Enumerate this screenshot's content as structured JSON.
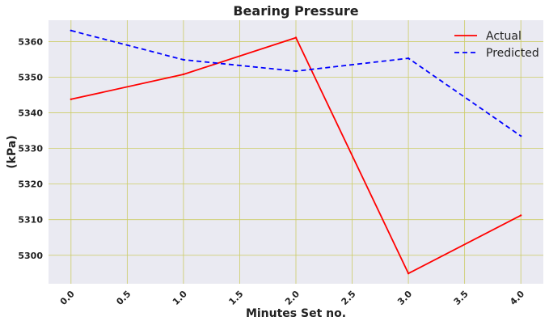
{
  "chart_data": {
    "type": "line",
    "title": "Bearing Pressure",
    "xlabel": "Minutes Set no.",
    "ylabel": "(kPa)",
    "x": [
      0,
      1,
      2,
      3,
      4
    ],
    "xlim": [
      -0.2,
      4.2
    ],
    "ylim": [
      5292,
      5366
    ],
    "xticks": [
      0.0,
      0.5,
      1.0,
      1.5,
      2.0,
      2.5,
      3.0,
      3.5,
      4.0
    ],
    "xtick_labels": [
      "0.0",
      "0.5",
      "1.0",
      "1.5",
      "2.0",
      "2.5",
      "3.0",
      "3.5",
      "4.0"
    ],
    "yticks": [
      5300,
      5310,
      5320,
      5330,
      5340,
      5350,
      5360
    ],
    "ytick_labels": [
      "5300",
      "5310",
      "5320",
      "5330",
      "5340",
      "5350",
      "5360"
    ],
    "grid": true,
    "legend_position": "top-right",
    "series": [
      {
        "name": "Actual",
        "values": [
          5343.8,
          5350.8,
          5361.1,
          5294.9,
          5311.2
        ],
        "color": "#ff0000",
        "style": "solid"
      },
      {
        "name": "Predicted",
        "values": [
          5363.1,
          5354.9,
          5351.7,
          5355.3,
          5333.5
        ],
        "color": "#0000ff",
        "style": "dashed"
      }
    ]
  },
  "colors": {
    "plot_background": "#eaeaf2",
    "grid": "#cccc66"
  }
}
